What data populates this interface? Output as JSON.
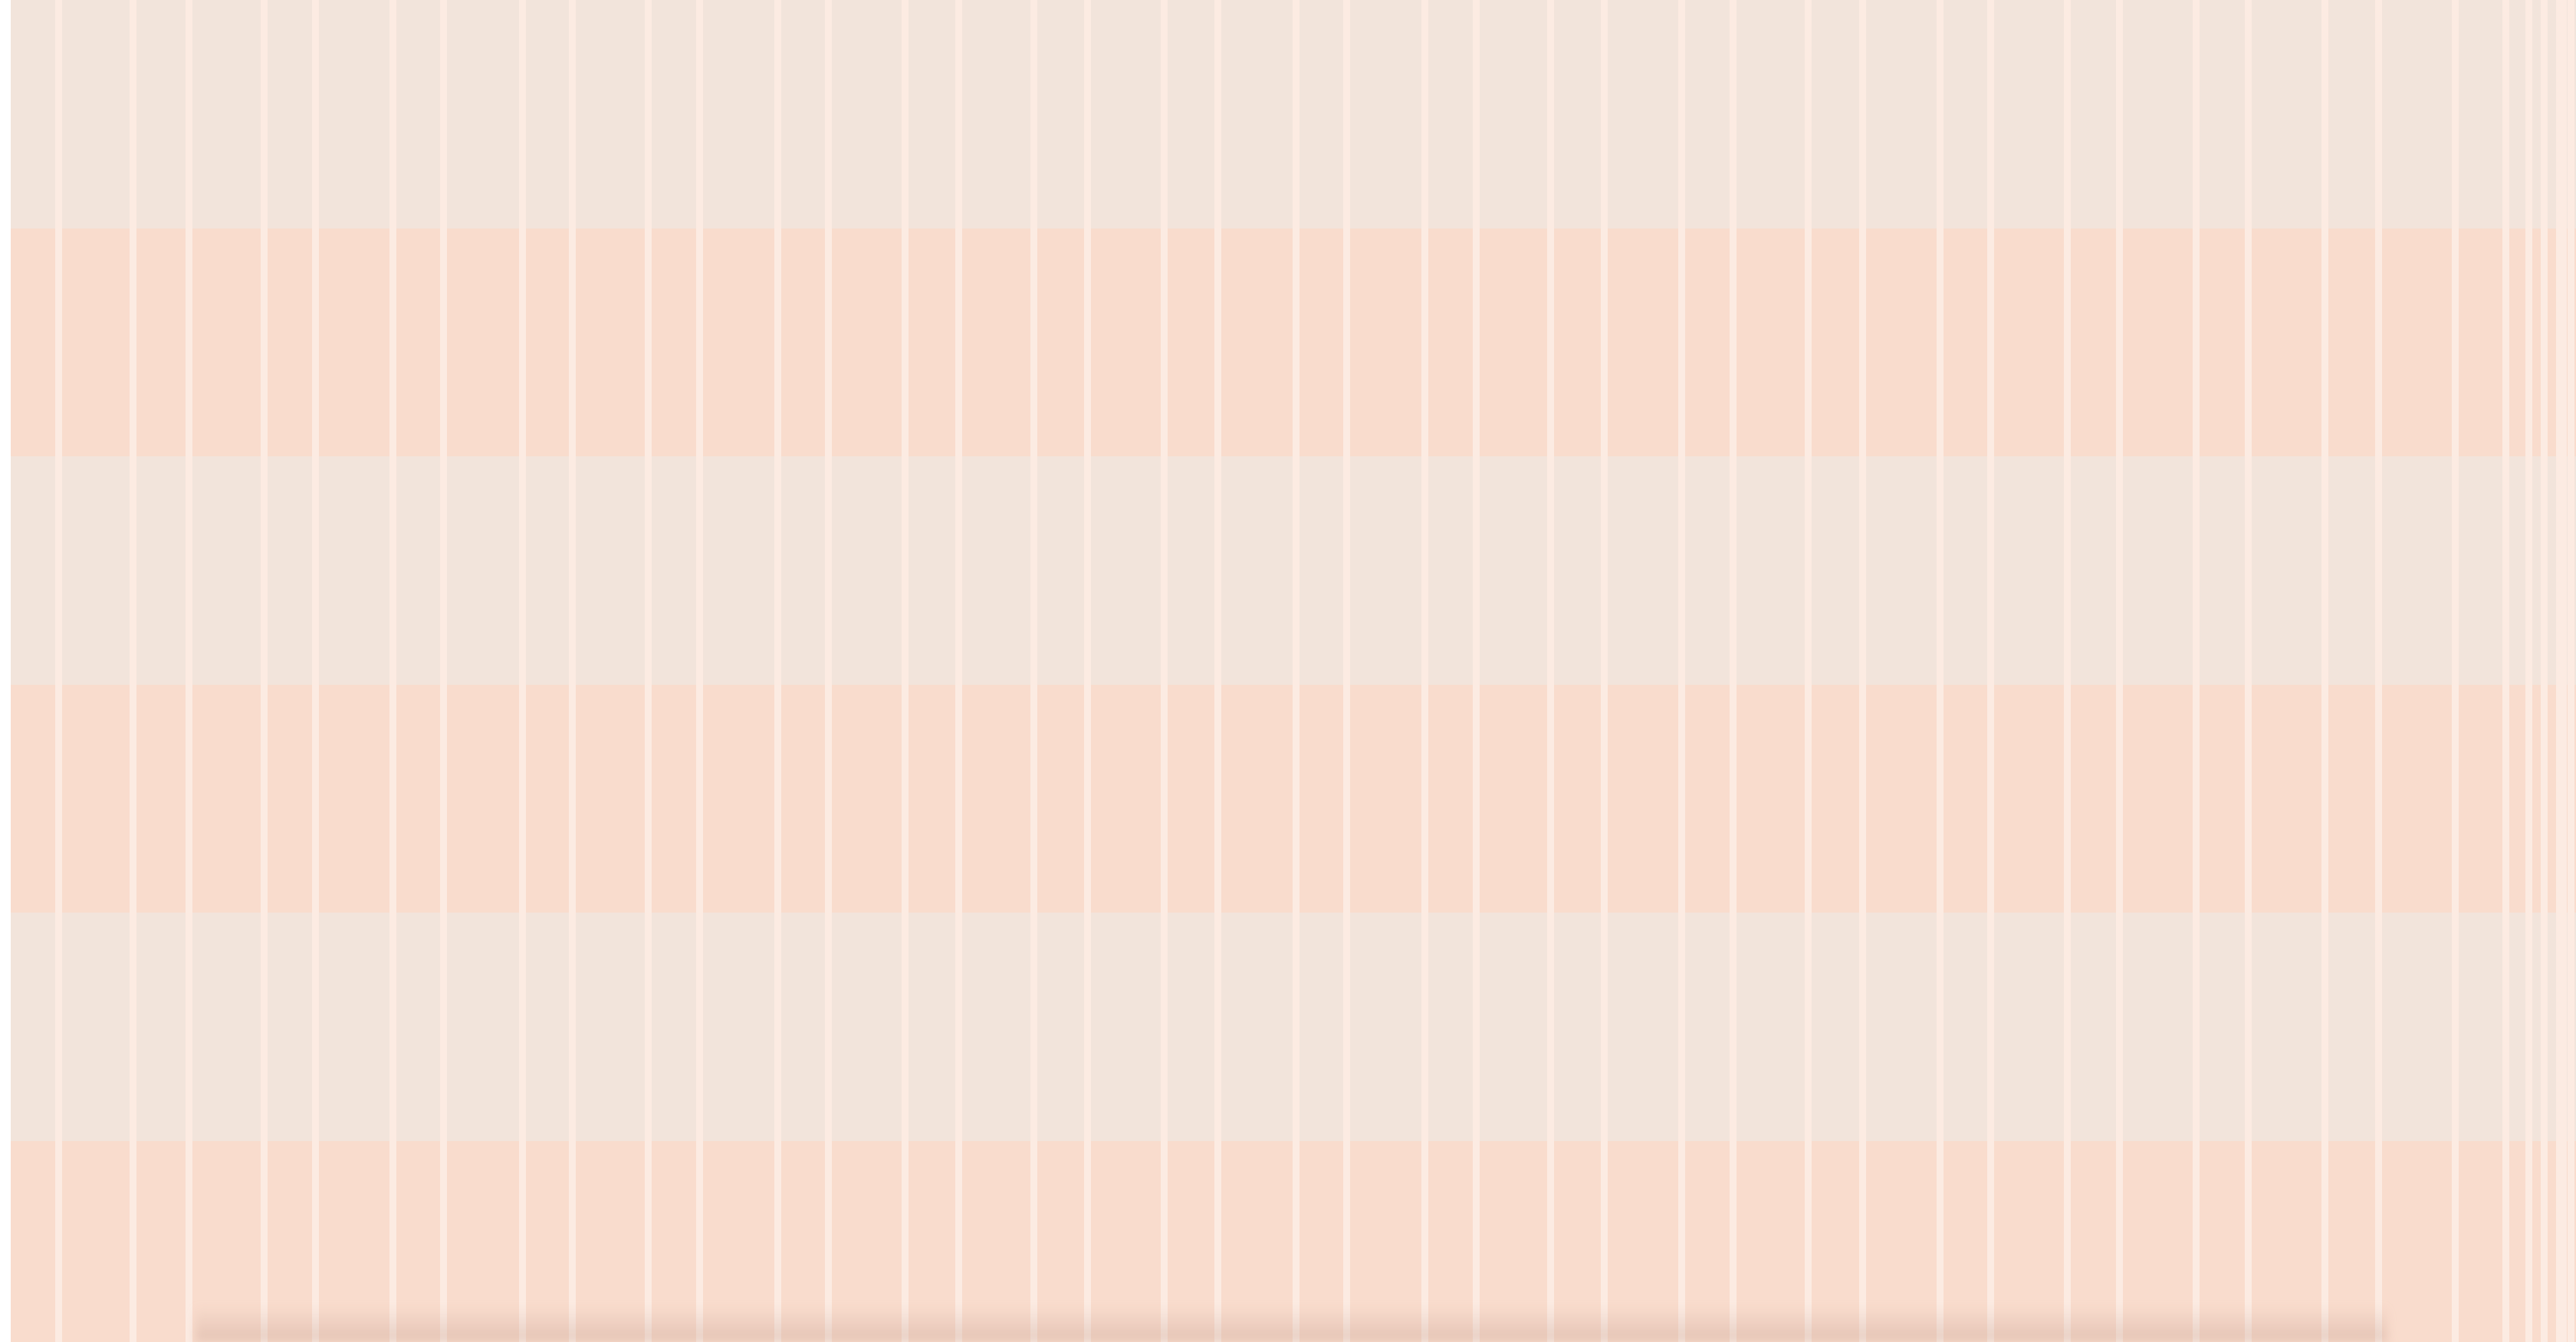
{
  "colors": {
    "band_light": "#f2e4db",
    "band_peach": "#f9dccd",
    "stripe": "#fcebe2",
    "page_background": "#ffffff"
  },
  "pattern": {
    "band_order": [
      "light",
      "peach",
      "light",
      "peach",
      "light",
      "peach"
    ],
    "vertical_stripe_count": 44
  }
}
